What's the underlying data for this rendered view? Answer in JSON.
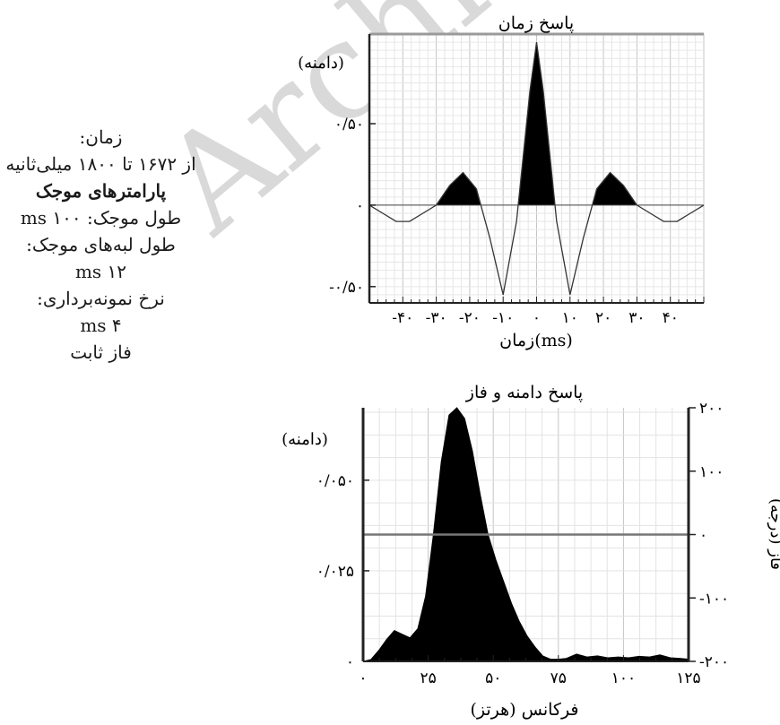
{
  "side_info": {
    "time_label": "زمان:",
    "time_range": "از ۱۶۷۲ تا ۱۸۰۰ میلی‌ثانیه",
    "params_heading": "پارامترهای موجک",
    "wavelet_length": "طول موجک: ۱۰۰ ms",
    "taper_label": "طول لبه‌های موجک:",
    "taper_value": "۱۲ ms",
    "sample_label": "نرخ نمونه‌برداری:",
    "sample_value": "۴ ms",
    "phase": "فاز ثابت"
  },
  "watermark": "Archive",
  "chart_data": [
    {
      "type": "line",
      "title": "پاسخ زمان",
      "xlabel": "زمان(ms)",
      "ylabel": "(دامنه)",
      "xlim": [
        -50,
        50
      ],
      "ylim": [
        -0.6,
        1.05
      ],
      "grid": true,
      "xticks": [
        -40,
        -30,
        -20,
        -10,
        0,
        10,
        20,
        30,
        40
      ],
      "xtick_labels": [
        "-۴۰",
        "-۳۰",
        "-۲۰",
        "-۱۰",
        "۰",
        "۱۰",
        "۲۰",
        "۳۰",
        "۴۰"
      ],
      "yticks": [
        0.5,
        0,
        -0.5
      ],
      "ytick_labels": [
        "۰/۵۰",
        "۰",
        "-۰/۵۰"
      ],
      "fill_positive": true,
      "x": [
        -50,
        -46,
        -42,
        -38,
        -34,
        -30,
        -26,
        -22,
        -18,
        -14,
        -10,
        -6,
        -2,
        0,
        2,
        6,
        10,
        14,
        18,
        22,
        26,
        30,
        34,
        38,
        42,
        46,
        50
      ],
      "y": [
        0,
        -0.05,
        -0.1,
        -0.1,
        -0.05,
        0,
        0.12,
        0.2,
        0.1,
        -0.2,
        -0.55,
        -0.1,
        0.7,
        1.0,
        0.7,
        -0.1,
        -0.55,
        -0.2,
        0.1,
        0.2,
        0.12,
        0,
        -0.05,
        -0.1,
        -0.1,
        -0.05,
        0
      ]
    },
    {
      "type": "area",
      "title": "پاسخ دامنه و فاز",
      "xlabel": "فرکانس (هرتز)",
      "ylabel": "(دامنه)",
      "y2label": "فاز (درجه)",
      "xlim": [
        0,
        125
      ],
      "ylim": [
        0,
        0.07
      ],
      "y2lim": [
        -200,
        200
      ],
      "grid": true,
      "xticks": [
        0,
        25,
        50,
        75,
        100,
        125
      ],
      "xtick_labels": [
        "۰",
        "۲۵",
        "۵۰",
        "۷۵",
        "۱۰۰",
        "۱۲۵"
      ],
      "yticks": [
        0,
        0.025,
        0.05
      ],
      "ytick_labels": [
        "۰",
        "۰/۰۲۵",
        "۰/۰۵۰"
      ],
      "y2ticks": [
        200,
        100,
        0,
        -100,
        -200
      ],
      "y2tick_labels": [
        "۲۰۰",
        "۱۰۰",
        "۰",
        "-۱۰۰",
        "-۲۰۰"
      ],
      "phase": 0,
      "x": [
        0,
        3,
        6,
        9,
        12,
        15,
        18,
        21,
        24,
        27,
        30,
        33,
        36,
        39,
        42,
        45,
        48,
        51,
        54,
        57,
        60,
        63,
        66,
        69,
        72,
        75,
        78,
        82,
        86,
        90,
        94,
        98,
        102,
        106,
        110,
        114,
        118,
        122,
        125
      ],
      "y": [
        0,
        0.0005,
        0.003,
        0.006,
        0.0085,
        0.0075,
        0.0065,
        0.009,
        0.018,
        0.035,
        0.055,
        0.068,
        0.07,
        0.067,
        0.058,
        0.046,
        0.035,
        0.028,
        0.022,
        0.016,
        0.011,
        0.007,
        0.004,
        0.0015,
        0.0006,
        0.0006,
        0.0008,
        0.002,
        0.0012,
        0.0015,
        0.001,
        0.0012,
        0.001,
        0.0014,
        0.0012,
        0.0018,
        0.001,
        0.0008,
        0.0006
      ]
    }
  ]
}
